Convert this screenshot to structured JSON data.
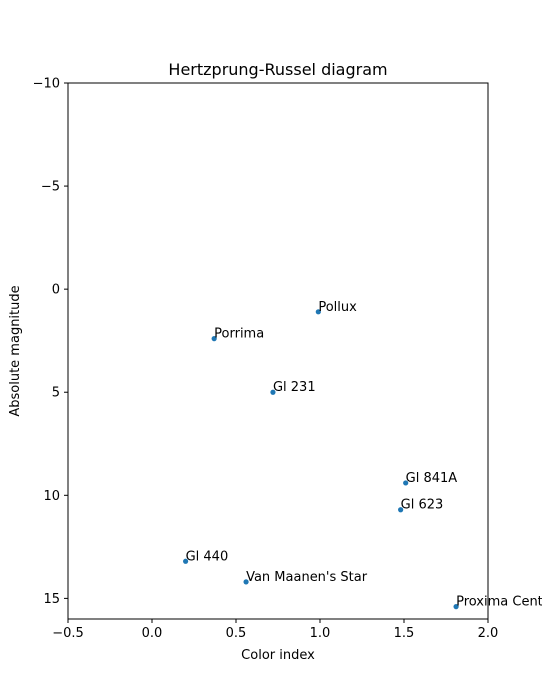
{
  "chart_data": {
    "type": "scatter",
    "title": "Hertzprung-Russel diagram",
    "xlabel": "Color index",
    "ylabel": "Absolute magnitude",
    "xlim": [
      -0.5,
      2.0
    ],
    "ylim": [
      16,
      -10
    ],
    "y_inverted": true,
    "grid": false,
    "legend": "none",
    "x_ticks": [
      -0.5,
      0.0,
      0.5,
      1.0,
      1.5,
      2.0
    ],
    "x_tick_labels": [
      "−0.5",
      "0.0",
      "0.5",
      "1.0",
      "1.5",
      "2.0"
    ],
    "y_ticks": [
      -10,
      -5,
      0,
      5,
      10,
      15
    ],
    "y_tick_labels": [
      "−10",
      "−5",
      "0",
      "5",
      "10",
      "15"
    ],
    "marker_color": "#1f77b4",
    "points": [
      {
        "label": "Pollux",
        "x": 0.99,
        "y": 1.1
      },
      {
        "label": "Porrima",
        "x": 0.37,
        "y": 2.4
      },
      {
        "label": "Gl 231",
        "x": 0.72,
        "y": 5.0
      },
      {
        "label": "Gl 841A",
        "x": 1.51,
        "y": 9.4
      },
      {
        "label": "Gl 623",
        "x": 1.48,
        "y": 10.7
      },
      {
        "label": "Gl 440",
        "x": 0.2,
        "y": 13.2
      },
      {
        "label": "Van Maanen's Star",
        "x": 0.56,
        "y": 14.2
      },
      {
        "label": "Proxima Centauri",
        "x": 1.81,
        "y": 15.4
      }
    ]
  }
}
